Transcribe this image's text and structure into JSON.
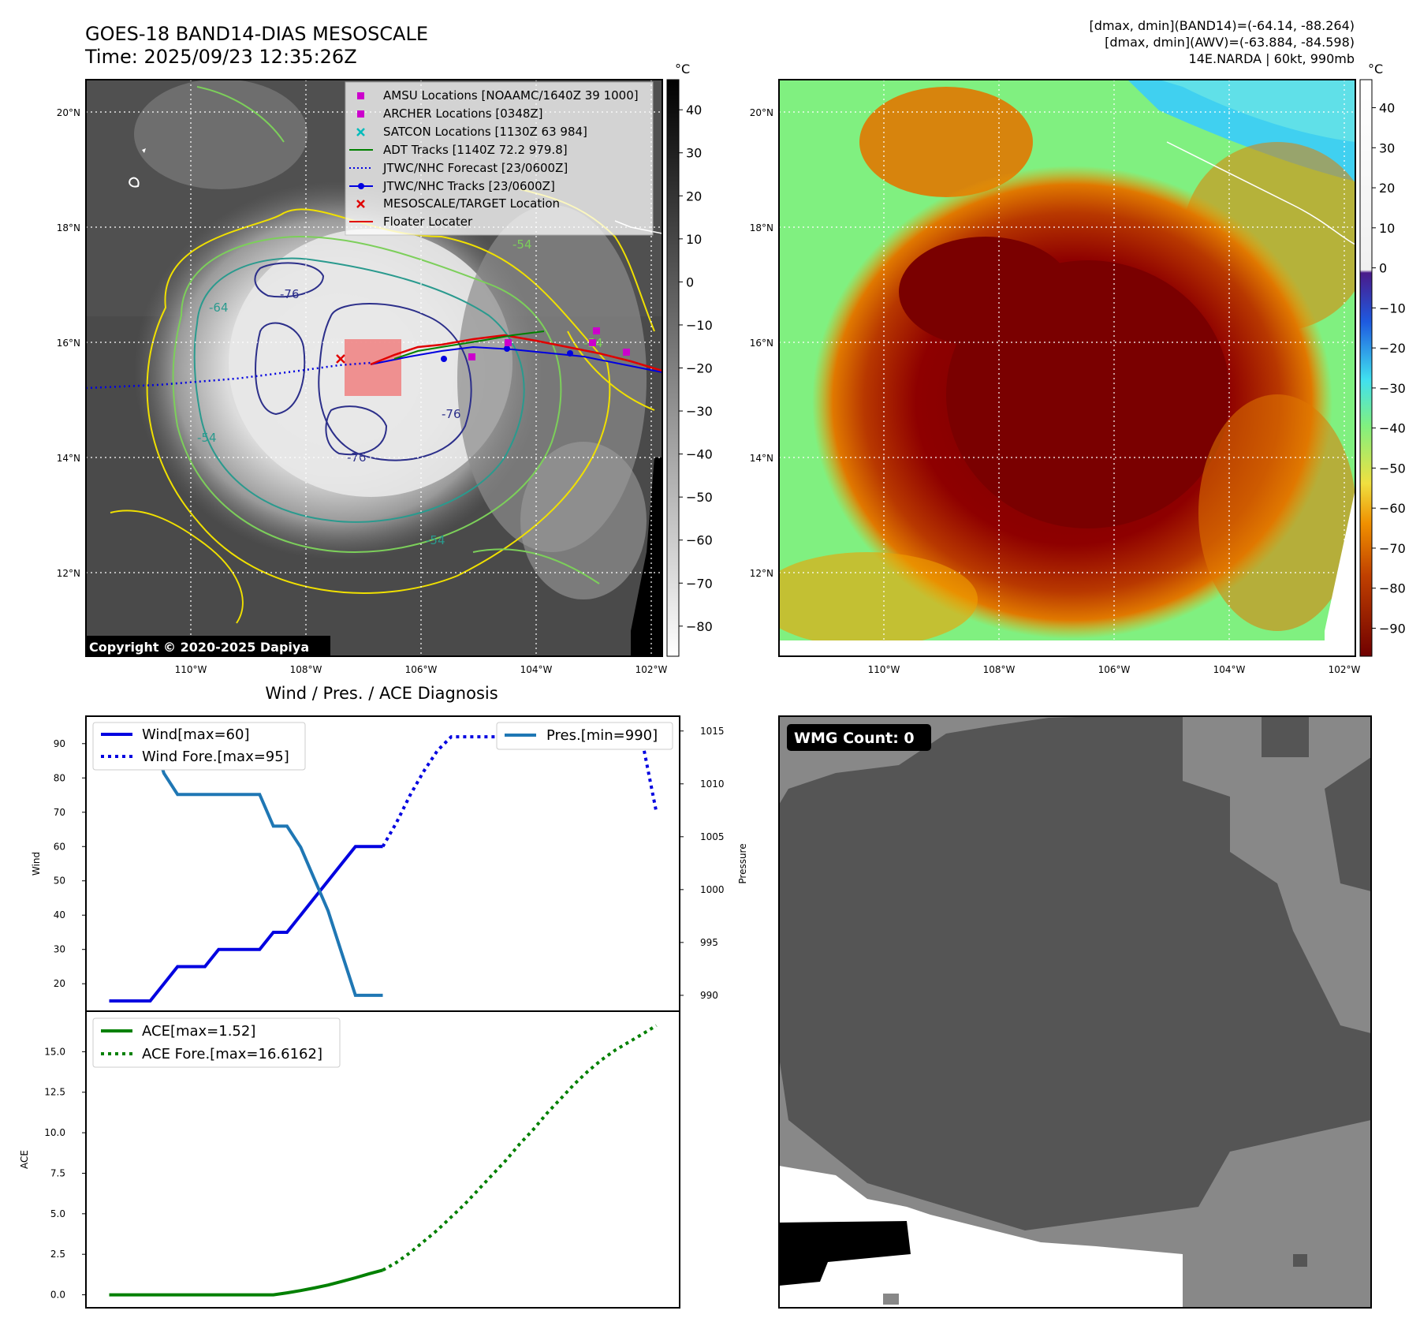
{
  "header": {
    "title_line1": "GOES-18 BAND14-DIAS MESOSCALE",
    "title_line2": "Time: 2025/09/23 12:35:26Z",
    "stats_line1": "[dmax, dmin](BAND14)=(-64.14, -88.264)",
    "stats_line2": "[dmax, dmin](AWV)=(-63.884, -84.598)",
    "stats_line3": "14E.NARDA | 60kt, 990mb"
  },
  "map": {
    "lat_labels": [
      "20°N",
      "18°N",
      "16°N",
      "14°N",
      "12°N"
    ],
    "lon_labels": [
      "110°W",
      "108°W",
      "106°W",
      "104°W",
      "102°W"
    ],
    "copyright": "Copyright © 2020-2025 Dapiya",
    "contour_labels": [
      "-76",
      "-64",
      "-76",
      "-76",
      "-54",
      "-54",
      "-54",
      "-54"
    ],
    "colors": {
      "contour_yellow": "#f0e000",
      "contour_green": "#7ccf5a",
      "contour_teal": "#2a9a8e",
      "contour_navy": "#2c2f8a",
      "track_red": "#e00000",
      "track_blue": "#0000e0",
      "track_green": "#008000",
      "amsu_magenta": "#cc00cc",
      "satcon_cyan": "#00bbbb",
      "target_box": "#f08080"
    }
  },
  "legend_map": [
    {
      "label": "AMSU Locations [NOAAMC/1640Z 39 1000]",
      "icon": "magenta-square-icon"
    },
    {
      "label": "ARCHER Locations [0348Z]",
      "icon": "magenta-square-icon"
    },
    {
      "label": "SATCON Locations [1130Z 63 984]",
      "icon": "cyan-x-icon"
    },
    {
      "label": "ADT Tracks [1140Z 72.2 979.8]",
      "icon": "green-line-icon"
    },
    {
      "label": "JTWC/NHC Forecast [23/0600Z]",
      "icon": "blue-dotted-line-icon"
    },
    {
      "label": "JTWC/NHC Tracks [23/0600Z]",
      "icon": "blue-line-dot-icon"
    },
    {
      "label": "MESOSCALE/TARGET Location",
      "icon": "red-x-icon"
    },
    {
      "label": "Floater Locater",
      "icon": "red-line-icon"
    }
  ],
  "colorbars": {
    "unit": "°C",
    "left_ticks": [
      "40",
      "30",
      "20",
      "10",
      "0",
      "−10",
      "−20",
      "−30",
      "−40",
      "−50",
      "−60",
      "−70",
      "−80"
    ],
    "right_ticks": [
      "40",
      "30",
      "20",
      "10",
      "0",
      "−10",
      "−20",
      "−30",
      "−40",
      "−50",
      "−60",
      "−70",
      "−80",
      "−90"
    ]
  },
  "wmg": {
    "label": "WMG Count: 0"
  },
  "chart_data": [
    {
      "type": "line",
      "title": "Wind / Pres. / ACE Diagnosis",
      "ylabel": "Wind",
      "y2label": "Pressure",
      "ylim": [
        12,
        98
      ],
      "y2lim": [
        988.5,
        1016.4
      ],
      "yticks": [
        "20",
        "30",
        "40",
        "50",
        "60",
        "70",
        "80",
        "90"
      ],
      "y2ticks": [
        "990",
        "995",
        "1000",
        "1005",
        "1010",
        "1015"
      ],
      "x": [
        0,
        1,
        2,
        3,
        4,
        5,
        6,
        7,
        8,
        9,
        10,
        11,
        12,
        13,
        14,
        15,
        16,
        17,
        18,
        19,
        20,
        21,
        22,
        23,
        24,
        25,
        26,
        27,
        28,
        29,
        30,
        31,
        32,
        33,
        34,
        35,
        36,
        37,
        38,
        39,
        40
      ],
      "series": [
        {
          "name": "Wind[max=60]",
          "style": "solid",
          "color": "#0000e0",
          "x": [
            0,
            1,
            2,
            3,
            4,
            5,
            6,
            7,
            8,
            9,
            10,
            11,
            12,
            13,
            14,
            15,
            16,
            17,
            18,
            19,
            20
          ],
          "values": [
            15,
            15,
            15,
            15,
            20,
            25,
            25,
            25,
            30,
            30,
            30,
            30,
            35,
            35,
            40,
            45,
            50,
            55,
            60,
            60,
            60
          ]
        },
        {
          "name": "Wind Fore.[max=95]",
          "style": "dotted",
          "color": "#0000e0",
          "x": [
            20,
            21,
            22,
            23,
            24,
            25,
            26,
            27,
            28,
            29,
            30,
            31,
            32,
            33,
            34,
            35,
            36,
            37,
            38,
            39,
            40
          ],
          "values": [
            60,
            67,
            75,
            82,
            88,
            92,
            92,
            92,
            92,
            92,
            95,
            95,
            95,
            95,
            95,
            95,
            90,
            90,
            90,
            90,
            70
          ]
        },
        {
          "name": "Pres.[min=990]",
          "axis": "y2",
          "style": "solid",
          "color": "#1f77b4",
          "x": [
            0,
            1,
            2,
            3,
            4,
            5,
            6,
            7,
            8,
            9,
            10,
            11,
            12,
            13,
            14,
            15,
            16,
            17,
            18,
            19,
            20
          ],
          "values": [
            1015,
            1015,
            1015,
            1015,
            1011,
            1009,
            1009,
            1009,
            1009,
            1009,
            1009,
            1009,
            1006,
            1006,
            1004,
            1001,
            998,
            994,
            990,
            990,
            990
          ]
        }
      ]
    },
    {
      "type": "line",
      "ylabel": "ACE",
      "ylim": [
        -0.8,
        17.5
      ],
      "yticks": [
        "0.0",
        "2.5",
        "5.0",
        "7.5",
        "10.0",
        "12.5",
        "15.0"
      ],
      "series": [
        {
          "name": "ACE[max=1.52]",
          "style": "solid",
          "color": "#008000",
          "x": [
            0,
            2,
            4,
            6,
            8,
            10,
            11,
            12,
            13,
            14,
            15,
            16,
            17,
            18,
            19,
            20
          ],
          "values": [
            0,
            0,
            0,
            0,
            0,
            0,
            0,
            0,
            0.12,
            0.26,
            0.42,
            0.6,
            0.82,
            1.05,
            1.3,
            1.52
          ]
        },
        {
          "name": "ACE Fore.[max=16.6162]",
          "style": "dotted",
          "color": "#008000",
          "x": [
            20,
            21,
            22,
            23,
            24,
            25,
            26,
            27,
            28,
            29,
            30,
            31,
            32,
            33,
            34,
            35,
            36,
            37,
            38,
            39,
            40
          ],
          "values": [
            1.52,
            2.0,
            2.6,
            3.3,
            4.0,
            4.8,
            5.6,
            6.5,
            7.4,
            8.3,
            9.3,
            10.2,
            11.2,
            12.1,
            13.0,
            13.8,
            14.5,
            15.1,
            15.6,
            16.1,
            16.6162
          ]
        }
      ]
    }
  ]
}
